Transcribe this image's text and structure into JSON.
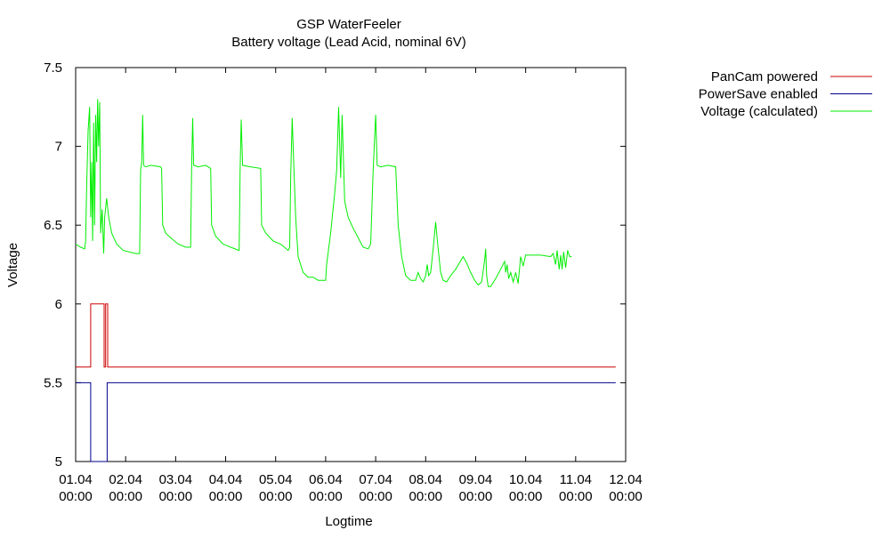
{
  "chart_data": {
    "type": "line",
    "title": "GSP WaterFeeler",
    "subtitle": "Battery voltage (Lead Acid, nominal 6V)",
    "xlabel": "Logtime",
    "ylabel": "Voltage",
    "ylim": [
      5,
      7.5
    ],
    "xlim_days": [
      0,
      11
    ],
    "grid": false,
    "legend_placement": "right, outside plot, top",
    "y_ticks": [
      "5",
      "5.5",
      "6",
      "6.5",
      "7",
      "7.5"
    ],
    "x_ticks": [
      {
        "date": "01.04",
        "time": "00:00"
      },
      {
        "date": "02.04",
        "time": "00:00"
      },
      {
        "date": "03.04",
        "time": "00:00"
      },
      {
        "date": "04.04",
        "time": "00:00"
      },
      {
        "date": "05.04",
        "time": "00:00"
      },
      {
        "date": "06.04",
        "time": "00:00"
      },
      {
        "date": "07.04",
        "time": "00:00"
      },
      {
        "date": "08.04",
        "time": "00:00"
      },
      {
        "date": "09.04",
        "time": "00:00"
      },
      {
        "date": "10.04",
        "time": "00:00"
      },
      {
        "date": "11.04",
        "time": "00:00"
      },
      {
        "date": "12.04",
        "time": "00:00"
      }
    ],
    "series": [
      {
        "name": "PanCam powered",
        "color": "#cc0000",
        "points": [
          [
            0.0,
            5.6
          ],
          [
            0.3,
            5.6
          ],
          [
            0.3,
            6.0
          ],
          [
            0.57,
            6.0
          ],
          [
            0.57,
            5.6
          ],
          [
            0.6,
            5.6
          ],
          [
            0.6,
            6.0
          ],
          [
            0.64,
            6.0
          ],
          [
            0.64,
            5.6
          ],
          [
            10.8,
            5.6
          ]
        ]
      },
      {
        "name": "PowerSave enabled",
        "color": "#00008b",
        "points": [
          [
            0.0,
            5.5
          ],
          [
            0.3,
            5.5
          ],
          [
            0.3,
            5.0
          ],
          [
            0.63,
            5.0
          ],
          [
            0.63,
            5.5
          ],
          [
            10.8,
            5.5
          ]
        ]
      },
      {
        "name": "Voltage (calculated)",
        "color": "#00ee00",
        "points": [
          [
            0.0,
            6.38
          ],
          [
            0.1,
            6.36
          ],
          [
            0.18,
            6.35
          ],
          [
            0.2,
            6.4
          ],
          [
            0.22,
            6.75
          ],
          [
            0.25,
            7.1
          ],
          [
            0.28,
            7.25
          ],
          [
            0.3,
            6.55
          ],
          [
            0.32,
            6.9
          ],
          [
            0.34,
            6.4
          ],
          [
            0.36,
            7.15
          ],
          [
            0.38,
            6.5
          ],
          [
            0.4,
            7.2
          ],
          [
            0.42,
            6.9
          ],
          [
            0.44,
            7.3
          ],
          [
            0.46,
            7.0
          ],
          [
            0.48,
            7.28
          ],
          [
            0.5,
            6.45
          ],
          [
            0.53,
            6.6
          ],
          [
            0.56,
            6.32
          ],
          [
            0.58,
            6.55
          ],
          [
            0.62,
            6.67
          ],
          [
            0.66,
            6.55
          ],
          [
            0.72,
            6.45
          ],
          [
            0.82,
            6.38
          ],
          [
            0.95,
            6.34
          ],
          [
            1.2,
            6.32
          ],
          [
            1.28,
            6.32
          ],
          [
            1.3,
            6.85
          ],
          [
            1.32,
            6.9
          ],
          [
            1.34,
            7.2
          ],
          [
            1.36,
            6.88
          ],
          [
            1.4,
            6.87
          ],
          [
            1.5,
            6.88
          ],
          [
            1.7,
            6.87
          ],
          [
            1.72,
            6.86
          ],
          [
            1.74,
            6.5
          ],
          [
            1.8,
            6.45
          ],
          [
            1.9,
            6.42
          ],
          [
            2.05,
            6.38
          ],
          [
            2.2,
            6.36
          ],
          [
            2.3,
            6.36
          ],
          [
            2.32,
            6.86
          ],
          [
            2.34,
            7.18
          ],
          [
            2.36,
            6.88
          ],
          [
            2.45,
            6.87
          ],
          [
            2.6,
            6.88
          ],
          [
            2.7,
            6.86
          ],
          [
            2.72,
            6.5
          ],
          [
            2.8,
            6.43
          ],
          [
            2.95,
            6.38
          ],
          [
            3.1,
            6.36
          ],
          [
            3.27,
            6.34
          ],
          [
            3.29,
            6.85
          ],
          [
            3.31,
            7.17
          ],
          [
            3.34,
            6.88
          ],
          [
            3.5,
            6.87
          ],
          [
            3.7,
            6.86
          ],
          [
            3.72,
            6.5
          ],
          [
            3.8,
            6.45
          ],
          [
            3.95,
            6.4
          ],
          [
            4.1,
            6.38
          ],
          [
            4.25,
            6.34
          ],
          [
            4.28,
            6.36
          ],
          [
            4.3,
            6.8
          ],
          [
            4.33,
            7.18
          ],
          [
            4.36,
            6.9
          ],
          [
            4.4,
            6.55
          ],
          [
            4.45,
            6.3
          ],
          [
            4.55,
            6.2
          ],
          [
            4.65,
            6.17
          ],
          [
            4.75,
            6.17
          ],
          [
            4.85,
            6.15
          ],
          [
            4.92,
            6.15
          ],
          [
            5.0,
            6.15
          ],
          [
            5.02,
            6.25
          ],
          [
            5.1,
            6.45
          ],
          [
            5.18,
            6.7
          ],
          [
            5.22,
            6.85
          ],
          [
            5.26,
            7.25
          ],
          [
            5.3,
            6.8
          ],
          [
            5.33,
            7.2
          ],
          [
            5.38,
            6.65
          ],
          [
            5.45,
            6.55
          ],
          [
            5.55,
            6.48
          ],
          [
            5.65,
            6.42
          ],
          [
            5.75,
            6.36
          ],
          [
            5.85,
            6.35
          ],
          [
            5.9,
            6.38
          ],
          [
            5.95,
            6.85
          ],
          [
            6.0,
            7.2
          ],
          [
            6.03,
            6.88
          ],
          [
            6.1,
            6.87
          ],
          [
            6.25,
            6.88
          ],
          [
            6.4,
            6.87
          ],
          [
            6.45,
            6.5
          ],
          [
            6.52,
            6.3
          ],
          [
            6.6,
            6.18
          ],
          [
            6.7,
            6.15
          ],
          [
            6.8,
            6.15
          ],
          [
            6.85,
            6.2
          ],
          [
            6.9,
            6.16
          ],
          [
            6.95,
            6.14
          ],
          [
            7.0,
            6.18
          ],
          [
            7.03,
            6.25
          ],
          [
            7.06,
            6.18
          ],
          [
            7.1,
            6.2
          ],
          [
            7.15,
            6.35
          ],
          [
            7.2,
            6.52
          ],
          [
            7.24,
            6.38
          ],
          [
            7.3,
            6.2
          ],
          [
            7.35,
            6.15
          ],
          [
            7.42,
            6.14
          ],
          [
            7.5,
            6.18
          ],
          [
            7.6,
            6.22
          ],
          [
            7.75,
            6.3
          ],
          [
            7.82,
            6.26
          ],
          [
            7.9,
            6.2
          ],
          [
            7.98,
            6.15
          ],
          [
            8.05,
            6.12
          ],
          [
            8.12,
            6.14
          ],
          [
            8.18,
            6.28
          ],
          [
            8.2,
            6.35
          ],
          [
            8.22,
            6.18
          ],
          [
            8.25,
            6.11
          ],
          [
            8.3,
            6.11
          ],
          [
            8.4,
            6.16
          ],
          [
            8.5,
            6.22
          ],
          [
            8.58,
            6.27
          ],
          [
            8.6,
            6.2
          ],
          [
            8.63,
            6.25
          ],
          [
            8.66,
            6.16
          ],
          [
            8.7,
            6.2
          ],
          [
            8.75,
            6.14
          ],
          [
            8.8,
            6.2
          ],
          [
            8.85,
            6.13
          ],
          [
            8.9,
            6.3
          ],
          [
            8.95,
            6.24
          ],
          [
            9.0,
            6.31
          ],
          [
            9.3,
            6.31
          ],
          [
            9.5,
            6.3
          ],
          [
            9.55,
            6.32
          ],
          [
            9.6,
            6.25
          ],
          [
            9.63,
            6.34
          ],
          [
            9.67,
            6.22
          ],
          [
            9.7,
            6.31
          ],
          [
            9.73,
            6.22
          ],
          [
            9.76,
            6.33
          ],
          [
            9.8,
            6.23
          ],
          [
            9.84,
            6.34
          ],
          [
            9.88,
            6.3
          ],
          [
            9.92,
            6.3
          ]
        ]
      }
    ]
  }
}
